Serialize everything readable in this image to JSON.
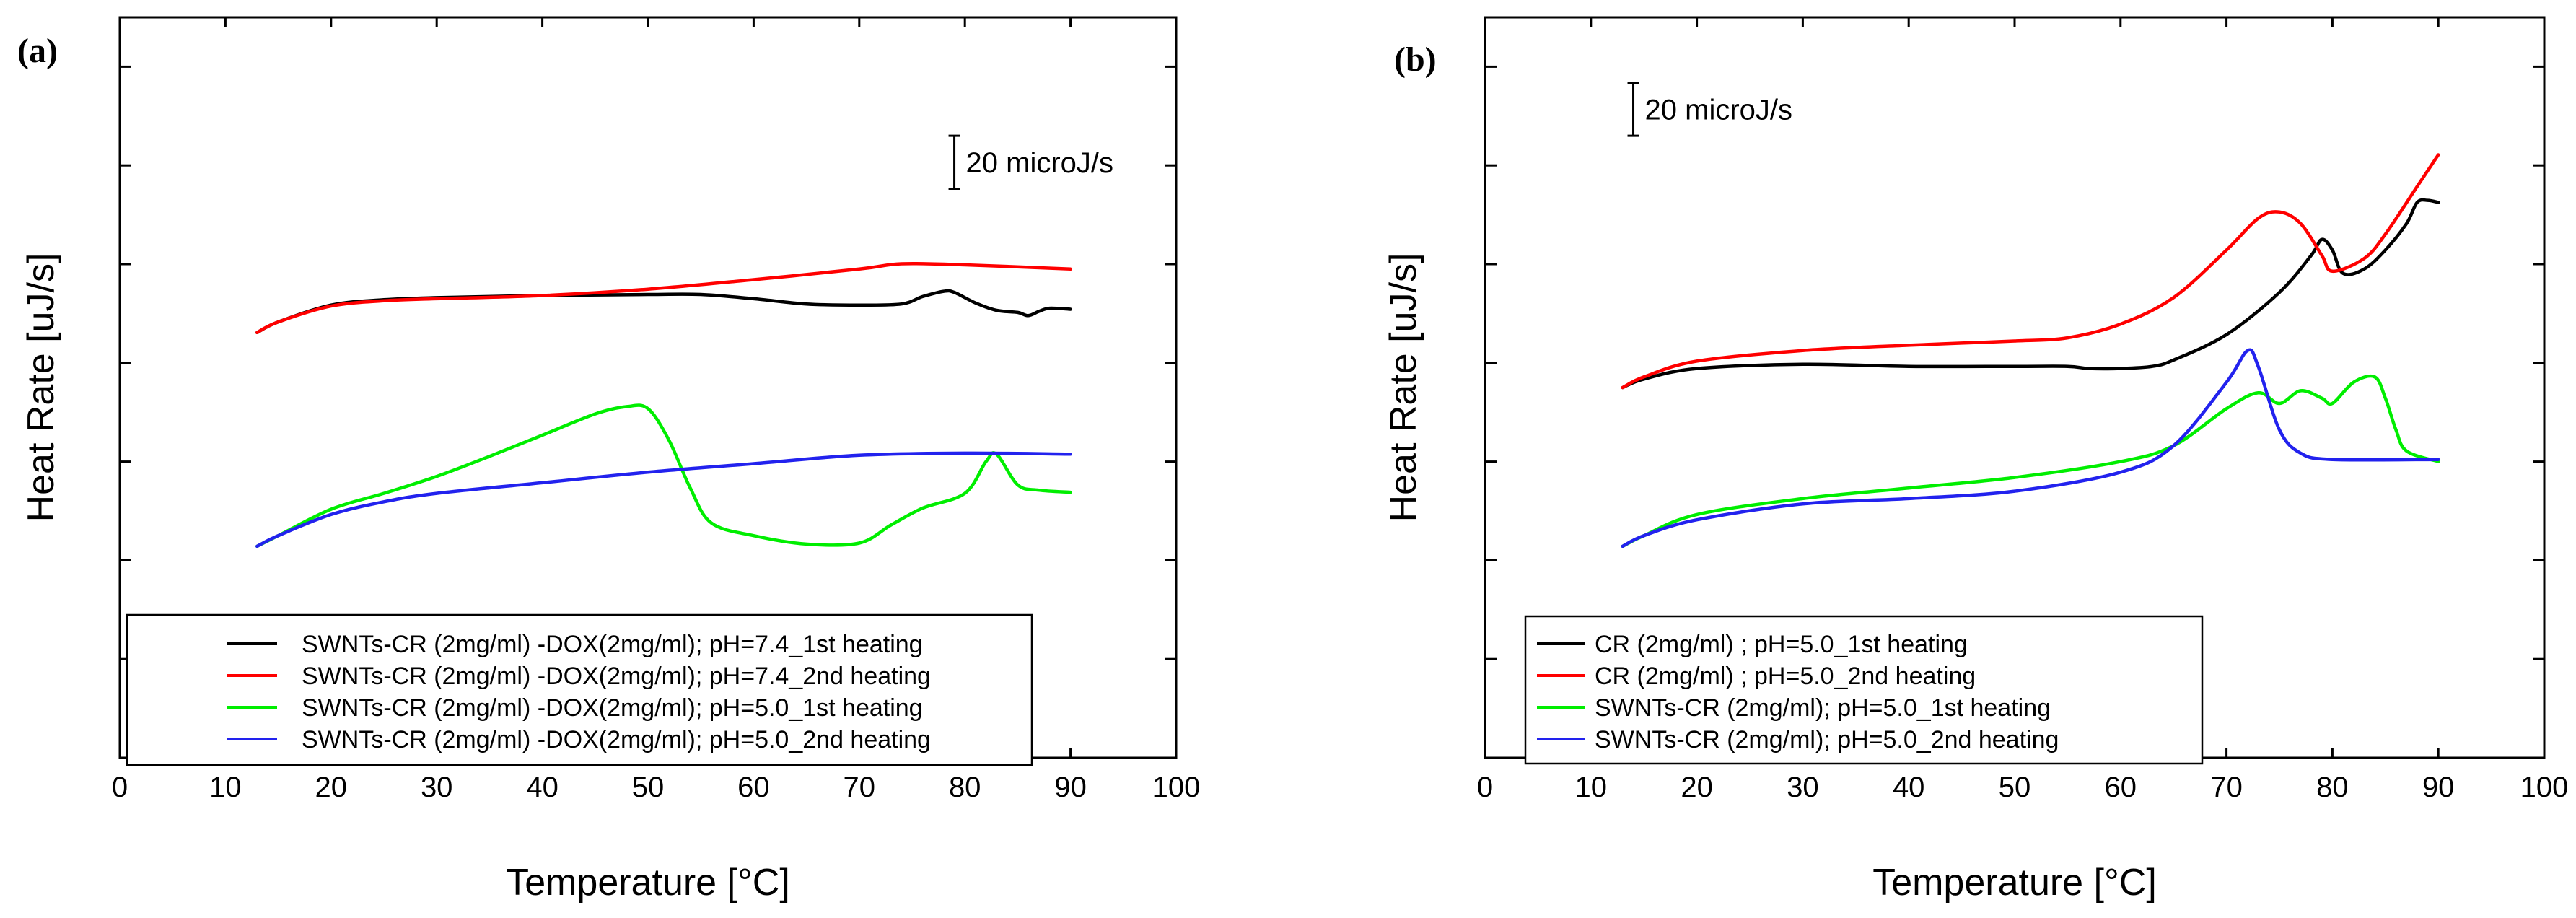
{
  "chart_data": [
    {
      "type": "line",
      "panel_label": "(a)",
      "xlabel": "Temperature [°C]",
      "ylabel": "Heat Rate [uJ/s]",
      "xlim": [
        0,
        100
      ],
      "ylim": [
        0,
        7
      ],
      "x_ticks": [
        0,
        10,
        20,
        30,
        40,
        50,
        60,
        70,
        80,
        90,
        100
      ],
      "y_tick_count": 7,
      "scale_bar_label": "20 microJ/s",
      "scale_bar_x": 79,
      "scale_bar_y": [
        5.38,
        5.88
      ],
      "legend_position": "bottom",
      "series": [
        {
          "name": "SWNTs-CR (2mg/ml) -DOX(2mg/ml); pH=7.4_1st heating",
          "color": "#000000",
          "points": [
            [
              13,
              4.02
            ],
            [
              15,
              4.12
            ],
            [
              20,
              4.28
            ],
            [
              25,
              4.33
            ],
            [
              30,
              4.35
            ],
            [
              40,
              4.37
            ],
            [
              50,
              4.38
            ],
            [
              55,
              4.38
            ],
            [
              60,
              4.34
            ],
            [
              65,
              4.29
            ],
            [
              70,
              4.28
            ],
            [
              74,
              4.29
            ],
            [
              76,
              4.36
            ],
            [
              78,
              4.41
            ],
            [
              79,
              4.4
            ],
            [
              81,
              4.3
            ],
            [
              83,
              4.23
            ],
            [
              85,
              4.21
            ],
            [
              86,
              4.18
            ],
            [
              87,
              4.22
            ],
            [
              88,
              4.25
            ],
            [
              90,
              4.24
            ]
          ]
        },
        {
          "name": "SWNTs-CR (2mg/ml) -DOX(2mg/ml); pH=7.4_2nd heating",
          "color": "#ff0000",
          "points": [
            [
              13,
              4.02
            ],
            [
              15,
              4.12
            ],
            [
              20,
              4.27
            ],
            [
              25,
              4.32
            ],
            [
              30,
              4.34
            ],
            [
              40,
              4.37
            ],
            [
              50,
              4.43
            ],
            [
              60,
              4.52
            ],
            [
              70,
              4.62
            ],
            [
              74,
              4.67
            ],
            [
              80,
              4.66
            ],
            [
              90,
              4.62
            ]
          ]
        },
        {
          "name": "SWNTs-CR (2mg/ml) -DOX(2mg/ml); pH=5.0_1st heating",
          "color": "#00ee00",
          "points": [
            [
              13,
              2.0
            ],
            [
              15,
              2.1
            ],
            [
              20,
              2.35
            ],
            [
              25,
              2.5
            ],
            [
              30,
              2.66
            ],
            [
              35,
              2.85
            ],
            [
              40,
              3.05
            ],
            [
              45,
              3.25
            ],
            [
              48,
              3.32
            ],
            [
              50,
              3.3
            ],
            [
              52,
              3.0
            ],
            [
              54,
              2.55
            ],
            [
              56,
              2.22
            ],
            [
              60,
              2.1
            ],
            [
              65,
              2.02
            ],
            [
              70,
              2.03
            ],
            [
              73,
              2.2
            ],
            [
              76,
              2.36
            ],
            [
              80,
              2.5
            ],
            [
              82,
              2.8
            ],
            [
              83,
              2.87
            ],
            [
              85,
              2.58
            ],
            [
              87,
              2.53
            ],
            [
              90,
              2.51
            ]
          ]
        },
        {
          "name": "SWNTs-CR (2mg/ml) -DOX(2mg/ml); pH=5.0_2nd heating",
          "color": "#2222ee",
          "points": [
            [
              13,
              2.0
            ],
            [
              15,
              2.1
            ],
            [
              20,
              2.3
            ],
            [
              25,
              2.42
            ],
            [
              30,
              2.5
            ],
            [
              40,
              2.6
            ],
            [
              50,
              2.7
            ],
            [
              60,
              2.78
            ],
            [
              70,
              2.86
            ],
            [
              80,
              2.88
            ],
            [
              90,
              2.87
            ]
          ]
        }
      ]
    },
    {
      "type": "line",
      "panel_label": "(b)",
      "xlabel": "Temperature [°C]",
      "ylabel": "Heat Rate [uJ/s]",
      "xlim": [
        0,
        100
      ],
      "ylim": [
        0,
        7
      ],
      "x_ticks": [
        0,
        10,
        20,
        30,
        40,
        50,
        60,
        70,
        80,
        90,
        100
      ],
      "y_tick_count": 7,
      "scale_bar_label": "20 microJ/s",
      "scale_bar_x": 14,
      "scale_bar_y": [
        5.88,
        6.38
      ],
      "legend_position": "bottom-left",
      "series": [
        {
          "name": "CR (2mg/ml) ; pH=5.0_1st heating",
          "color": "#000000",
          "points": [
            [
              13,
              3.5
            ],
            [
              15,
              3.58
            ],
            [
              20,
              3.68
            ],
            [
              30,
              3.72
            ],
            [
              40,
              3.7
            ],
            [
              50,
              3.7
            ],
            [
              55,
              3.7
            ],
            [
              57,
              3.68
            ],
            [
              60,
              3.68
            ],
            [
              63,
              3.7
            ],
            [
              65,
              3.76
            ],
            [
              70,
              4.0
            ],
            [
              75,
              4.4
            ],
            [
              78,
              4.75
            ],
            [
              79,
              4.9
            ],
            [
              80,
              4.8
            ],
            [
              81,
              4.58
            ],
            [
              83,
              4.62
            ],
            [
              85,
              4.8
            ],
            [
              87,
              5.05
            ],
            [
              88,
              5.25
            ],
            [
              89,
              5.27
            ],
            [
              90,
              5.25
            ]
          ]
        },
        {
          "name": "CR (2mg/ml) ; pH=5.0_2nd heating",
          "color": "#ff0000",
          "points": [
            [
              13,
              3.5
            ],
            [
              15,
              3.6
            ],
            [
              20,
              3.75
            ],
            [
              30,
              3.85
            ],
            [
              40,
              3.9
            ],
            [
              45,
              3.92
            ],
            [
              50,
              3.94
            ],
            [
              55,
              3.97
            ],
            [
              60,
              4.1
            ],
            [
              65,
              4.35
            ],
            [
              70,
              4.8
            ],
            [
              73,
              5.1
            ],
            [
              75,
              5.16
            ],
            [
              77,
              5.05
            ],
            [
              79,
              4.75
            ],
            [
              80,
              4.6
            ],
            [
              83,
              4.72
            ],
            [
              85,
              4.95
            ],
            [
              88,
              5.4
            ],
            [
              90,
              5.7
            ]
          ]
        },
        {
          "name": "SWNTs-CR (2mg/ml); pH=5.0_1st heating",
          "color": "#00ee00",
          "points": [
            [
              13,
              2.0
            ],
            [
              15,
              2.1
            ],
            [
              20,
              2.3
            ],
            [
              30,
              2.45
            ],
            [
              40,
              2.55
            ],
            [
              50,
              2.65
            ],
            [
              60,
              2.8
            ],
            [
              65,
              2.95
            ],
            [
              70,
              3.3
            ],
            [
              73,
              3.45
            ],
            [
              75,
              3.35
            ],
            [
              77,
              3.47
            ],
            [
              79,
              3.4
            ],
            [
              80,
              3.35
            ],
            [
              82,
              3.55
            ],
            [
              84,
              3.6
            ],
            [
              85,
              3.4
            ],
            [
              86,
              3.1
            ],
            [
              87,
              2.9
            ],
            [
              90,
              2.8
            ]
          ]
        },
        {
          "name": "SWNTs-CR (2mg/ml); pH=5.0_2nd heating",
          "color": "#2222ee",
          "points": [
            [
              13,
              2.0
            ],
            [
              15,
              2.1
            ],
            [
              20,
              2.25
            ],
            [
              30,
              2.4
            ],
            [
              40,
              2.45
            ],
            [
              50,
              2.52
            ],
            [
              60,
              2.7
            ],
            [
              65,
              2.95
            ],
            [
              70,
              3.55
            ],
            [
              72,
              3.85
            ],
            [
              73,
              3.7
            ],
            [
              75,
              3.1
            ],
            [
              77,
              2.88
            ],
            [
              80,
              2.82
            ],
            [
              90,
              2.82
            ]
          ]
        }
      ]
    }
  ]
}
